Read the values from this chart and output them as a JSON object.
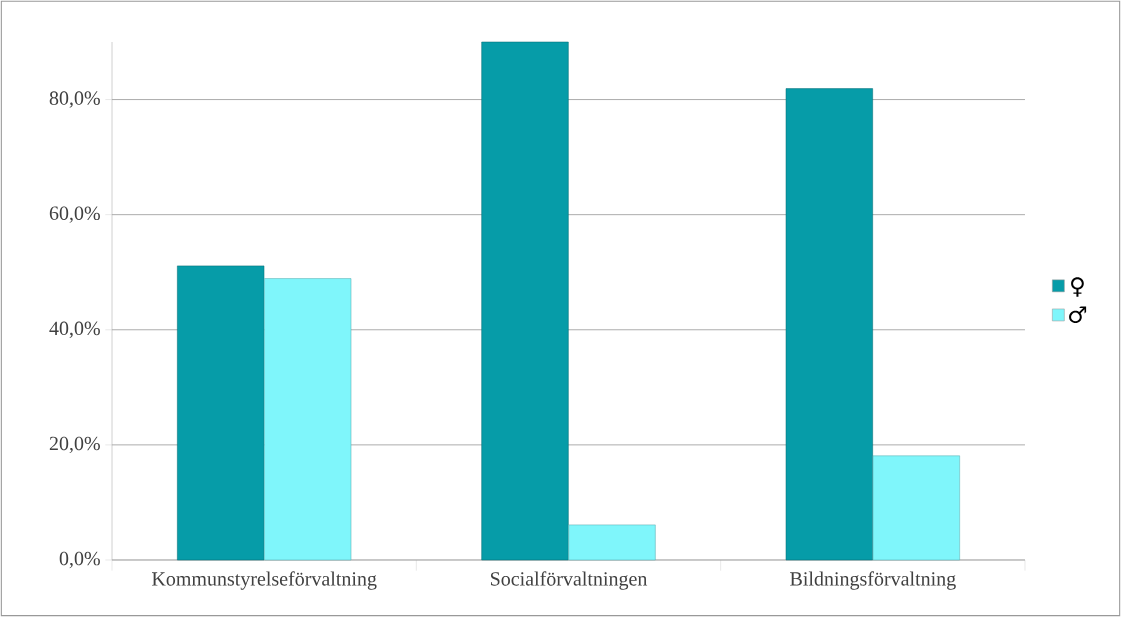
{
  "chart_data": {
    "type": "bar",
    "categories": [
      "Kommunstyrelseförvaltning",
      "Socialförvaltningen",
      "Bildningsförvaltning"
    ],
    "series": [
      {
        "name": "♀",
        "color": "#069ca8",
        "values": [
          51.1,
          90,
          81.9
        ]
      },
      {
        "name": "♂",
        "color": "#7ff6fb",
        "values": [
          48.9,
          6.1,
          18.1
        ]
      }
    ],
    "ylim": [
      0,
      90
    ],
    "yticks": [
      {
        "value": 0,
        "label": "0,0%"
      },
      {
        "value": 20,
        "label": "20,0%"
      },
      {
        "value": 40,
        "label": "40,0%"
      },
      {
        "value": 60,
        "label": "60,0%"
      },
      {
        "value": 80,
        "label": "80,0%"
      }
    ],
    "grid": "y",
    "legend": "right"
  }
}
